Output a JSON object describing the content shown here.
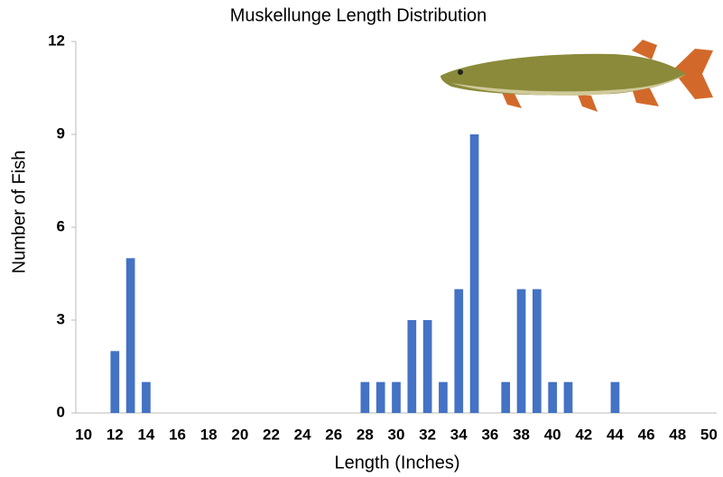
{
  "chart_data": {
    "type": "bar",
    "title": "Muskellunge Length Distribution",
    "x_label": "Length (Inches)",
    "y_label": "Number of Fish",
    "categories": [
      "10",
      null,
      "12",
      null,
      "14",
      null,
      "16",
      null,
      "18",
      null,
      "20",
      null,
      "22",
      null,
      "24",
      null,
      "26",
      null,
      "28",
      null,
      "30",
      null,
      "32",
      null,
      "34",
      null,
      "36",
      null,
      "38",
      null,
      "40",
      null,
      "42",
      null,
      "44",
      null,
      "46",
      null,
      "48",
      null,
      "50"
    ],
    "values": [
      0,
      0,
      2,
      5,
      1,
      0,
      0,
      0,
      0,
      0,
      0,
      0,
      0,
      0,
      0,
      0,
      0,
      0,
      1,
      1,
      1,
      3,
      3,
      1,
      4,
      9,
      0,
      1,
      4,
      4,
      1,
      1,
      0,
      0,
      1,
      0,
      0,
      0,
      0,
      0,
      0
    ],
    "color": "#4472c4",
    "ylim": [
      0,
      12
    ],
    "yticks": [
      0,
      3,
      6,
      9,
      12
    ],
    "grid": false
  }
}
